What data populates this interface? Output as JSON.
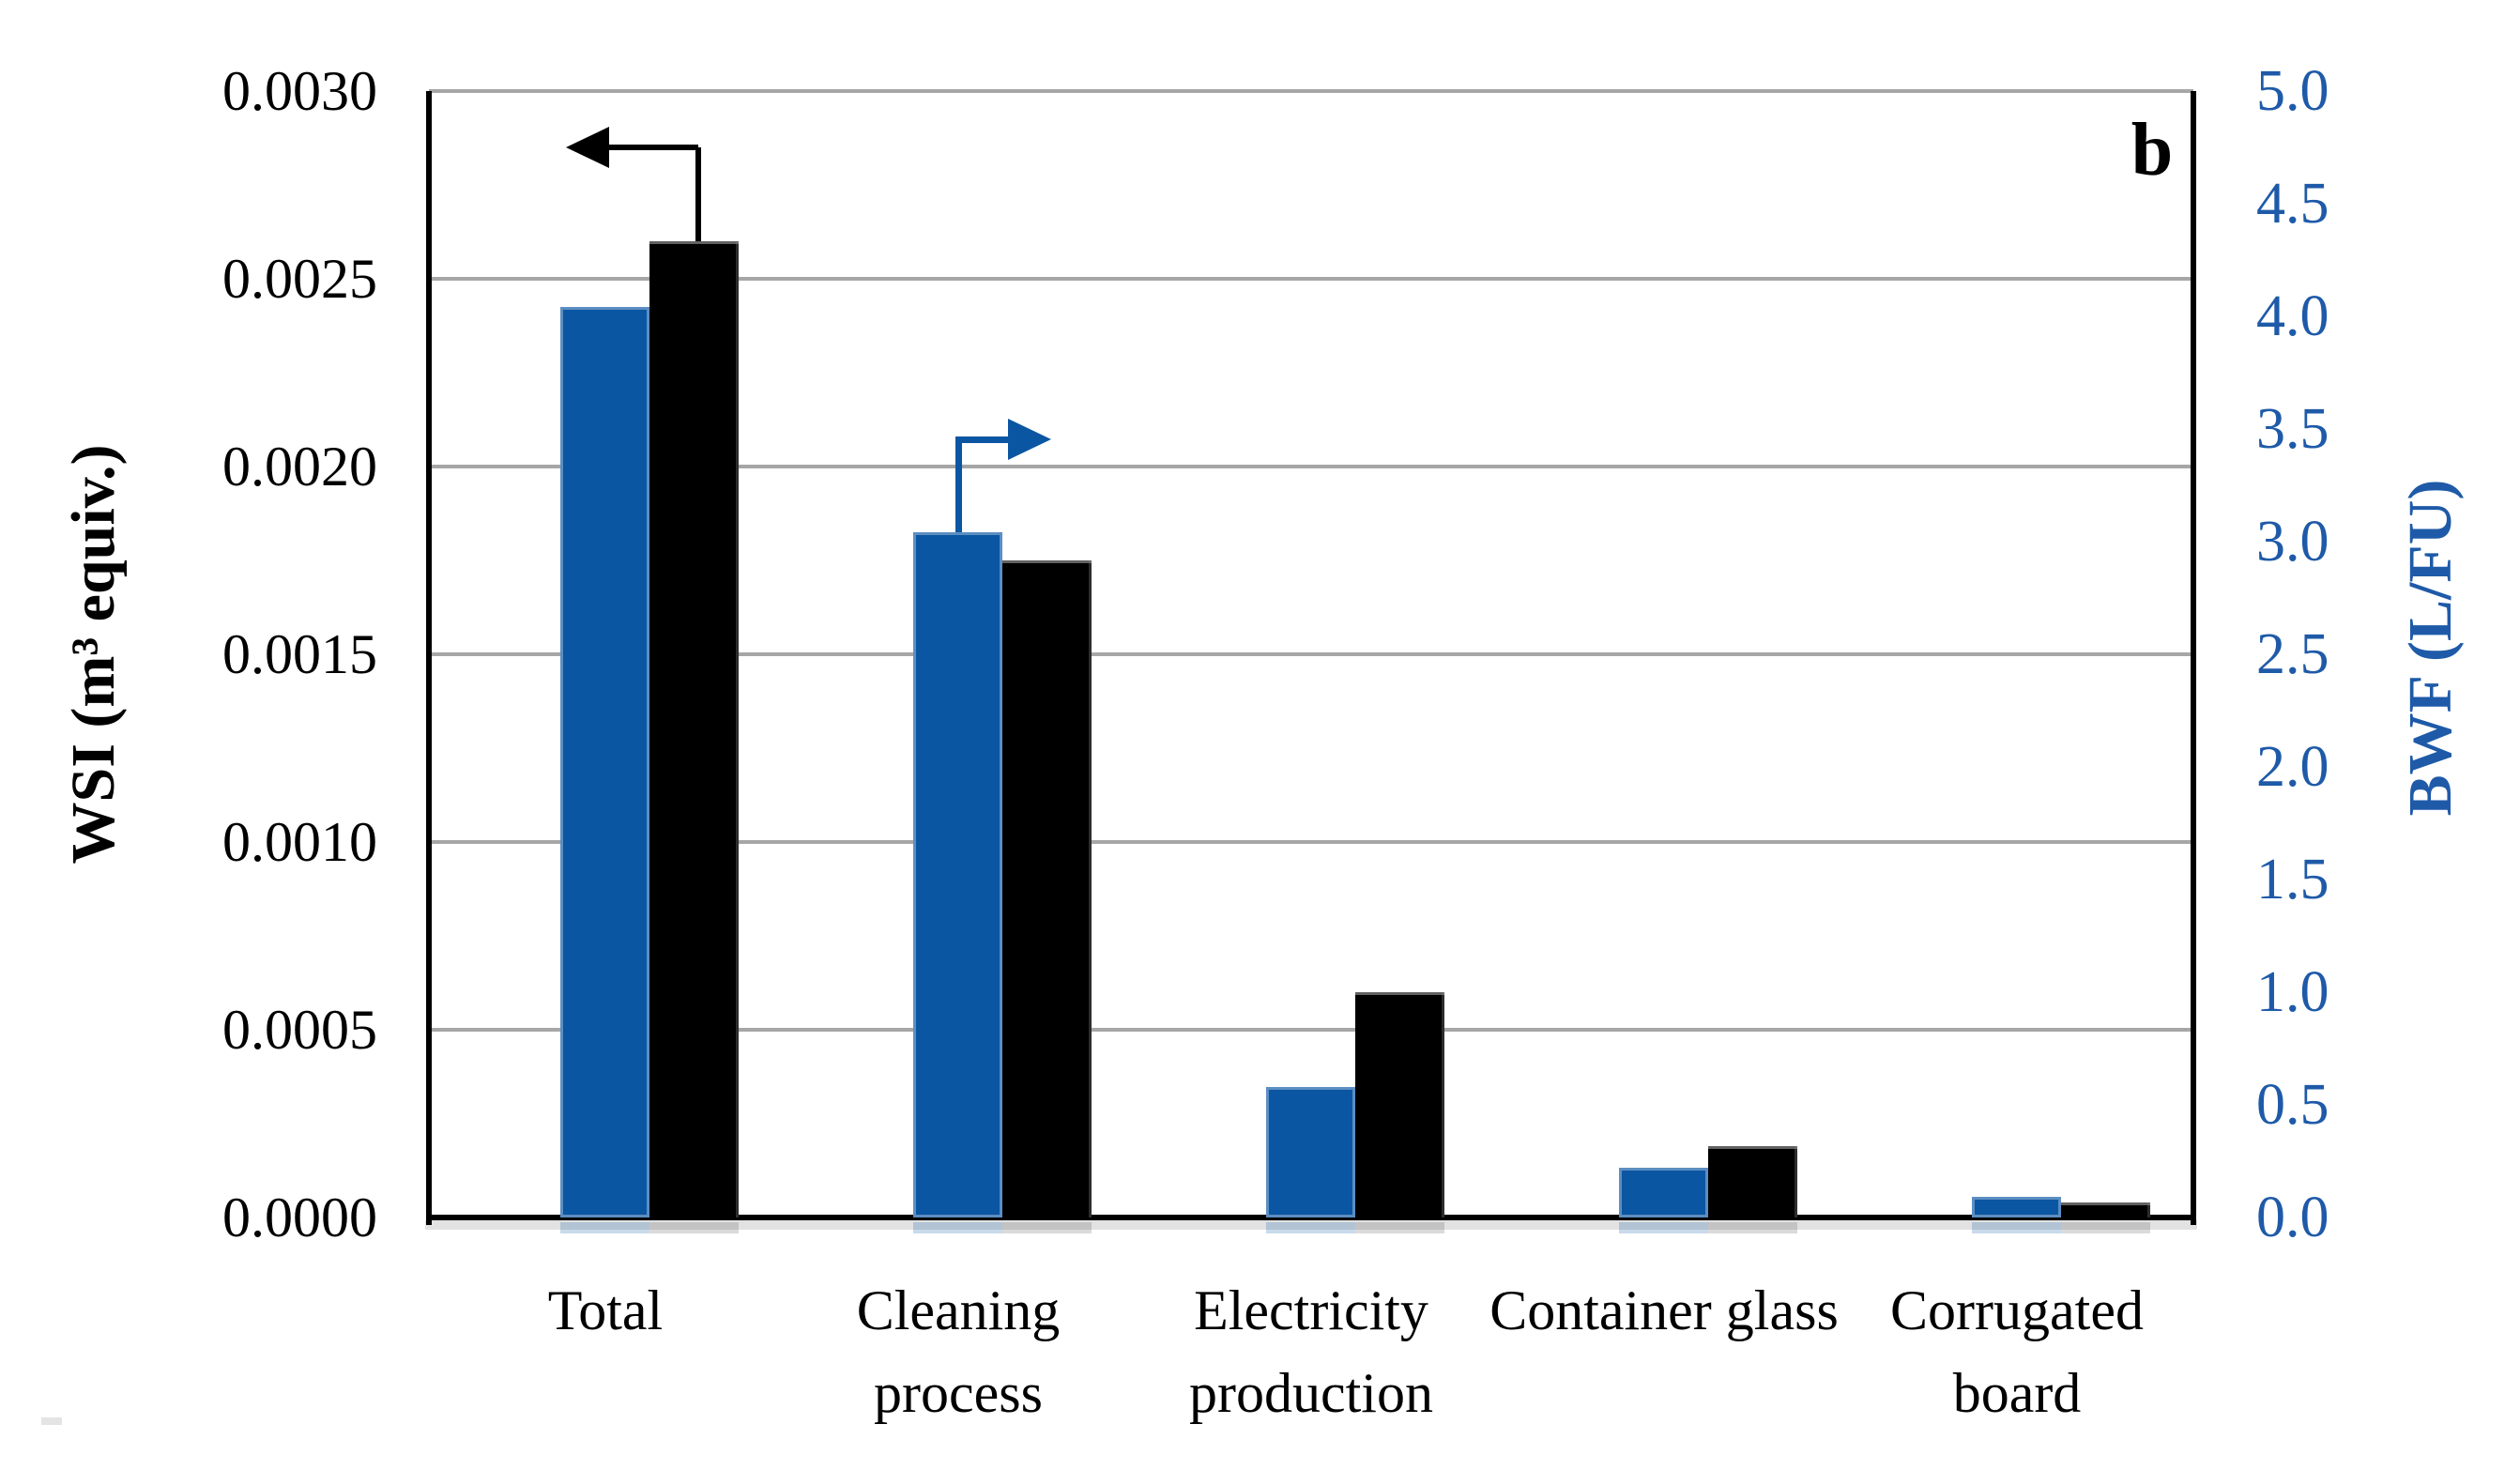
{
  "figure": {
    "panel_label": "b",
    "background_color": "#ffffff"
  },
  "chart_data": {
    "type": "bar",
    "title": "",
    "categories": [
      "Total",
      "Cleaning process",
      "Electricity production",
      "Container glass",
      "Corrugated board"
    ],
    "series": [
      {
        "name": "BWF",
        "axis": "right",
        "color": "#0b56a2",
        "values": [
          4.04,
          3.04,
          0.58,
          0.22,
          0.09
        ]
      },
      {
        "name": "WSI",
        "axis": "left",
        "color": "#000000",
        "values": [
          0.0026,
          0.00175,
          0.0006,
          0.00019,
          4e-05
        ]
      }
    ],
    "left_axis": {
      "label": "WSI (m³ equiv.)",
      "min": 0.0,
      "max": 0.003,
      "tick_labels": [
        "0.0000",
        "0.0005",
        "0.0010",
        "0.0015",
        "0.0020",
        "0.0025",
        "0.0030"
      ],
      "text_color": "#000000"
    },
    "right_axis": {
      "label": "BWF (L/FU)",
      "min": 0.0,
      "max": 5.0,
      "tick_labels": [
        "0.0",
        "0.5",
        "1.0",
        "1.5",
        "2.0",
        "2.5",
        "3.0",
        "3.5",
        "4.0",
        "4.5",
        "5.0"
      ],
      "text_color": "#1e5aa8"
    },
    "grid": true,
    "gridline_color": "#a6a6a6",
    "legend": "none",
    "annotations": [
      {
        "id": "left-axis-arrow",
        "series": "WSI",
        "category": "Total",
        "direction": "left",
        "color": "#000000"
      },
      {
        "id": "right-axis-arrow",
        "series": "BWF",
        "category": "Cleaning process",
        "direction": "right",
        "color": "#0b56a2"
      }
    ]
  }
}
